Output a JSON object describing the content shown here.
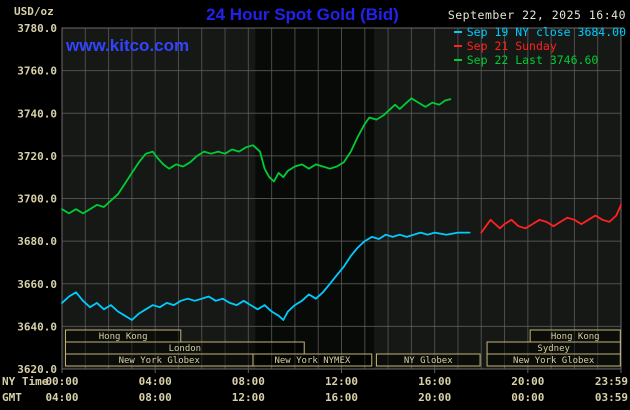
{
  "header": {
    "title": "24 Hour Spot Gold (Bid)",
    "datetime": "September 22, 2025 16:40",
    "watermark": "www.kitco.com"
  },
  "axis": {
    "unit": "USD/oz",
    "ny_label": "NY Time",
    "gmt_label": "GMT"
  },
  "legend": [
    {
      "label": "Sep 19 NY close 3684.00",
      "color": "#00ccff"
    },
    {
      "label": "Sep 21 Sunday",
      "color": "#ff2222"
    },
    {
      "label": "Sep 22 Last 3746.60",
      "color": "#00cc33"
    }
  ],
  "chart_data": {
    "type": "line",
    "title": "24 Hour Spot Gold (Bid)",
    "xlabel": "NY Time / GMT",
    "ylabel": "USD/oz",
    "ylim": [
      3620,
      3780
    ],
    "ytick_step": 20,
    "x_hours": [
      0,
      24
    ],
    "grid": true,
    "legend_position": "top-right",
    "nymex_band": [
      8.3,
      13.4
    ],
    "colors": {
      "background": "#000000",
      "plot_bg": "#151815",
      "band_bg": "#070a07",
      "grid": "#5f5f5f",
      "border": "#6a6a6a",
      "axis_text": "#d8d0a8",
      "session_border": "#c4b475",
      "session_text": "#d6cd9d",
      "title_blue": "#2222ee",
      "watermark_blue": "#3344ff",
      "date_text": "#e4e4d2"
    },
    "x_ticks": [
      {
        "hour": 0,
        "ny": "00:00",
        "gmt": "04:00"
      },
      {
        "hour": 4,
        "ny": "04:00",
        "gmt": "08:00"
      },
      {
        "hour": 8,
        "ny": "08:00",
        "gmt": "12:00"
      },
      {
        "hour": 12,
        "ny": "12:00",
        "gmt": "16:00"
      },
      {
        "hour": 16,
        "ny": "16:00",
        "gmt": "20:00"
      },
      {
        "hour": 20,
        "ny": "20:00",
        "gmt": "00:00"
      },
      {
        "hour": 24,
        "ny": "23:59",
        "gmt": "03:59"
      }
    ],
    "series": [
      {
        "id": "sep19",
        "name": "Sep 19 NY close",
        "close": 3684.0,
        "color": "#00ccff",
        "points": [
          [
            0,
            3651
          ],
          [
            0.3,
            3654
          ],
          [
            0.6,
            3656
          ],
          [
            0.9,
            3652
          ],
          [
            1.2,
            3649
          ],
          [
            1.5,
            3651
          ],
          [
            1.8,
            3648
          ],
          [
            2.1,
            3650
          ],
          [
            2.4,
            3647
          ],
          [
            2.7,
            3645
          ],
          [
            3.0,
            3643
          ],
          [
            3.3,
            3646
          ],
          [
            3.6,
            3648
          ],
          [
            3.9,
            3650
          ],
          [
            4.2,
            3649
          ],
          [
            4.5,
            3651
          ],
          [
            4.8,
            3650
          ],
          [
            5.1,
            3652
          ],
          [
            5.4,
            3653
          ],
          [
            5.7,
            3652
          ],
          [
            6.0,
            3653
          ],
          [
            6.3,
            3654
          ],
          [
            6.6,
            3652
          ],
          [
            6.9,
            3653
          ],
          [
            7.2,
            3651
          ],
          [
            7.5,
            3650
          ],
          [
            7.8,
            3652
          ],
          [
            8.1,
            3650
          ],
          [
            8.4,
            3648
          ],
          [
            8.7,
            3650
          ],
          [
            9.0,
            3647
          ],
          [
            9.3,
            3645
          ],
          [
            9.5,
            3643
          ],
          [
            9.7,
            3647
          ],
          [
            10.0,
            3650
          ],
          [
            10.3,
            3652
          ],
          [
            10.6,
            3655
          ],
          [
            10.9,
            3653
          ],
          [
            11.2,
            3656
          ],
          [
            11.5,
            3660
          ],
          [
            11.8,
            3664
          ],
          [
            12.1,
            3668
          ],
          [
            12.4,
            3673
          ],
          [
            12.7,
            3677
          ],
          [
            13.0,
            3680
          ],
          [
            13.3,
            3682
          ],
          [
            13.6,
            3681
          ],
          [
            13.9,
            3683
          ],
          [
            14.2,
            3682
          ],
          [
            14.5,
            3683
          ],
          [
            14.8,
            3682
          ],
          [
            15.1,
            3683
          ],
          [
            15.4,
            3684
          ],
          [
            15.7,
            3683
          ],
          [
            16.0,
            3684
          ],
          [
            16.5,
            3683
          ],
          [
            17.0,
            3684
          ],
          [
            17.5,
            3684
          ]
        ]
      },
      {
        "id": "sep21",
        "name": "Sep 21 Sunday",
        "color": "#ff2222",
        "points": [
          [
            18.0,
            3684
          ],
          [
            18.2,
            3687
          ],
          [
            18.4,
            3690
          ],
          [
            18.6,
            3688
          ],
          [
            18.8,
            3686
          ],
          [
            19.0,
            3688
          ],
          [
            19.3,
            3690
          ],
          [
            19.6,
            3687
          ],
          [
            19.9,
            3686
          ],
          [
            20.2,
            3688
          ],
          [
            20.5,
            3690
          ],
          [
            20.8,
            3689
          ],
          [
            21.1,
            3687
          ],
          [
            21.4,
            3689
          ],
          [
            21.7,
            3691
          ],
          [
            22.0,
            3690
          ],
          [
            22.3,
            3688
          ],
          [
            22.6,
            3690
          ],
          [
            22.9,
            3692
          ],
          [
            23.2,
            3690
          ],
          [
            23.5,
            3689
          ],
          [
            23.8,
            3692
          ],
          [
            24.0,
            3697
          ]
        ]
      },
      {
        "id": "sep22",
        "name": "Sep 22 Last",
        "last": 3746.6,
        "color": "#00cc33",
        "points": [
          [
            0,
            3695
          ],
          [
            0.3,
            3693
          ],
          [
            0.6,
            3695
          ],
          [
            0.9,
            3693
          ],
          [
            1.2,
            3695
          ],
          [
            1.5,
            3697
          ],
          [
            1.8,
            3696
          ],
          [
            2.1,
            3699
          ],
          [
            2.4,
            3702
          ],
          [
            2.7,
            3707
          ],
          [
            3.0,
            3712
          ],
          [
            3.3,
            3717
          ],
          [
            3.6,
            3721
          ],
          [
            3.9,
            3722
          ],
          [
            4.1,
            3719
          ],
          [
            4.35,
            3716
          ],
          [
            4.6,
            3714
          ],
          [
            4.9,
            3716
          ],
          [
            5.2,
            3715
          ],
          [
            5.5,
            3717
          ],
          [
            5.8,
            3720
          ],
          [
            6.1,
            3722
          ],
          [
            6.4,
            3721
          ],
          [
            6.7,
            3722
          ],
          [
            7.0,
            3721
          ],
          [
            7.3,
            3723
          ],
          [
            7.6,
            3722
          ],
          [
            7.9,
            3724
          ],
          [
            8.2,
            3725
          ],
          [
            8.5,
            3722
          ],
          [
            8.7,
            3714
          ],
          [
            8.9,
            3710
          ],
          [
            9.1,
            3708
          ],
          [
            9.3,
            3712
          ],
          [
            9.5,
            3710
          ],
          [
            9.7,
            3713
          ],
          [
            10.0,
            3715
          ],
          [
            10.3,
            3716
          ],
          [
            10.6,
            3714
          ],
          [
            10.9,
            3716
          ],
          [
            11.2,
            3715
          ],
          [
            11.5,
            3714
          ],
          [
            11.8,
            3715
          ],
          [
            12.1,
            3717
          ],
          [
            12.4,
            3722
          ],
          [
            12.7,
            3729
          ],
          [
            13.0,
            3735
          ],
          [
            13.2,
            3738
          ],
          [
            13.5,
            3737
          ],
          [
            13.8,
            3739
          ],
          [
            14.0,
            3741
          ],
          [
            14.3,
            3744
          ],
          [
            14.5,
            3742
          ],
          [
            14.8,
            3745
          ],
          [
            15.0,
            3747
          ],
          [
            15.3,
            3745
          ],
          [
            15.6,
            3743
          ],
          [
            15.9,
            3745
          ],
          [
            16.2,
            3744
          ],
          [
            16.45,
            3746
          ],
          [
            16.67,
            3746.6
          ]
        ]
      }
    ],
    "sessions": [
      {
        "row": 0,
        "label": "Hong Kong",
        "start": 0.15,
        "end": 5.1
      },
      {
        "row": 0,
        "label": "Hong Kong",
        "start": 20.1,
        "end": 23.97
      },
      {
        "row": 1,
        "label": "London",
        "start": 0.15,
        "end": 10.4
      },
      {
        "row": 1,
        "label": "Sydney",
        "start": 18.25,
        "end": 23.97
      },
      {
        "row": 2,
        "label": "New York Globex",
        "start": 0.15,
        "end": 8.2
      },
      {
        "row": 2,
        "label": "New York NYMEX",
        "start": 8.2,
        "end": 13.3
      },
      {
        "row": 2,
        "label": "NY Globex",
        "start": 13.5,
        "end": 17.95
      },
      {
        "row": 2,
        "label": "New York Globex",
        "start": 18.25,
        "end": 23.97
      }
    ]
  }
}
